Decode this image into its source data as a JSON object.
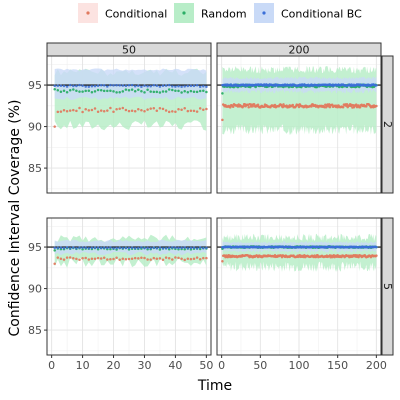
{
  "chart_data": {
    "type": "scatter",
    "xlabel": "Time",
    "ylabel": "Confidence Interval Coverage (%)",
    "legend": {
      "position": "top",
      "entries": [
        {
          "key": "conditional",
          "label": "Conditional",
          "color": "#E07A5F",
          "fill": "#FCE3E1"
        },
        {
          "key": "random",
          "label": "Random",
          "color": "#2BAE66",
          "fill": "#B8EDC8"
        },
        {
          "key": "conditional_bc",
          "label": "Conditional BC",
          "color": "#3B6FD8",
          "fill": "#C9DAF7"
        }
      ]
    },
    "facet_cols": [
      "50",
      "200"
    ],
    "facet_rows": [
      "2",
      "5"
    ],
    "ylim": [
      82,
      98.5
    ],
    "yticks": [
      85,
      90,
      95
    ],
    "reference_line": 95,
    "x_axes": {
      "50": {
        "xlim": [
          -1.5,
          51.5
        ],
        "xticks": [
          0,
          10,
          20,
          30,
          40,
          50
        ]
      },
      "200": {
        "xlim": [
          -6,
          206
        ],
        "xticks": [
          0,
          50,
          100,
          150,
          200
        ]
      }
    },
    "panels": [
      {
        "col": "50",
        "row": "2",
        "n": 50,
        "series": {
          "conditional": {
            "mean": 92.0,
            "first": 90.0,
            "jitter": 0.25
          },
          "random": {
            "mean": 94.3,
            "first": 94.5,
            "jitter": 0.2,
            "band": [
              89.5,
              97.0
            ]
          },
          "conditional_bc": {
            "mean": 94.9,
            "first": 94.9,
            "jitter": 0.1,
            "band": [
              93.2,
              97.0
            ]
          }
        }
      },
      {
        "col": "200",
        "row": "2",
        "n": 200,
        "series": {
          "conditional": {
            "mean": 92.5,
            "first": 90.8,
            "jitter": 0.2
          },
          "random": {
            "mean": 94.9,
            "first": 94.0,
            "jitter": 0.15,
            "band": [
              89.0,
              97.3
            ]
          },
          "conditional_bc": {
            "mean": 95.0,
            "first": 95.0,
            "jitter": 0.08,
            "band": [
              94.0,
              96.0
            ]
          }
        }
      },
      {
        "col": "50",
        "row": "5",
        "n": 50,
        "series": {
          "conditional": {
            "mean": 93.6,
            "first": 93.0,
            "jitter": 0.15
          },
          "random": {
            "mean": 94.8,
            "first": 94.6,
            "jitter": 0.1,
            "band": [
              92.5,
              96.5
            ]
          },
          "conditional_bc": {
            "mean": 94.9,
            "first": 94.9,
            "jitter": 0.06,
            "band": [
              94.0,
              95.9
            ]
          }
        }
      },
      {
        "col": "200",
        "row": "5",
        "n": 200,
        "series": {
          "conditional": {
            "mean": 93.9,
            "first": 93.3,
            "jitter": 0.12
          },
          "random": {
            "mean": 95.0,
            "first": 94.8,
            "jitter": 0.08,
            "band": [
              92.0,
              96.6
            ]
          },
          "conditional_bc": {
            "mean": 95.0,
            "first": 95.0,
            "jitter": 0.05,
            "band": [
              94.3,
              95.7
            ]
          }
        }
      }
    ]
  }
}
